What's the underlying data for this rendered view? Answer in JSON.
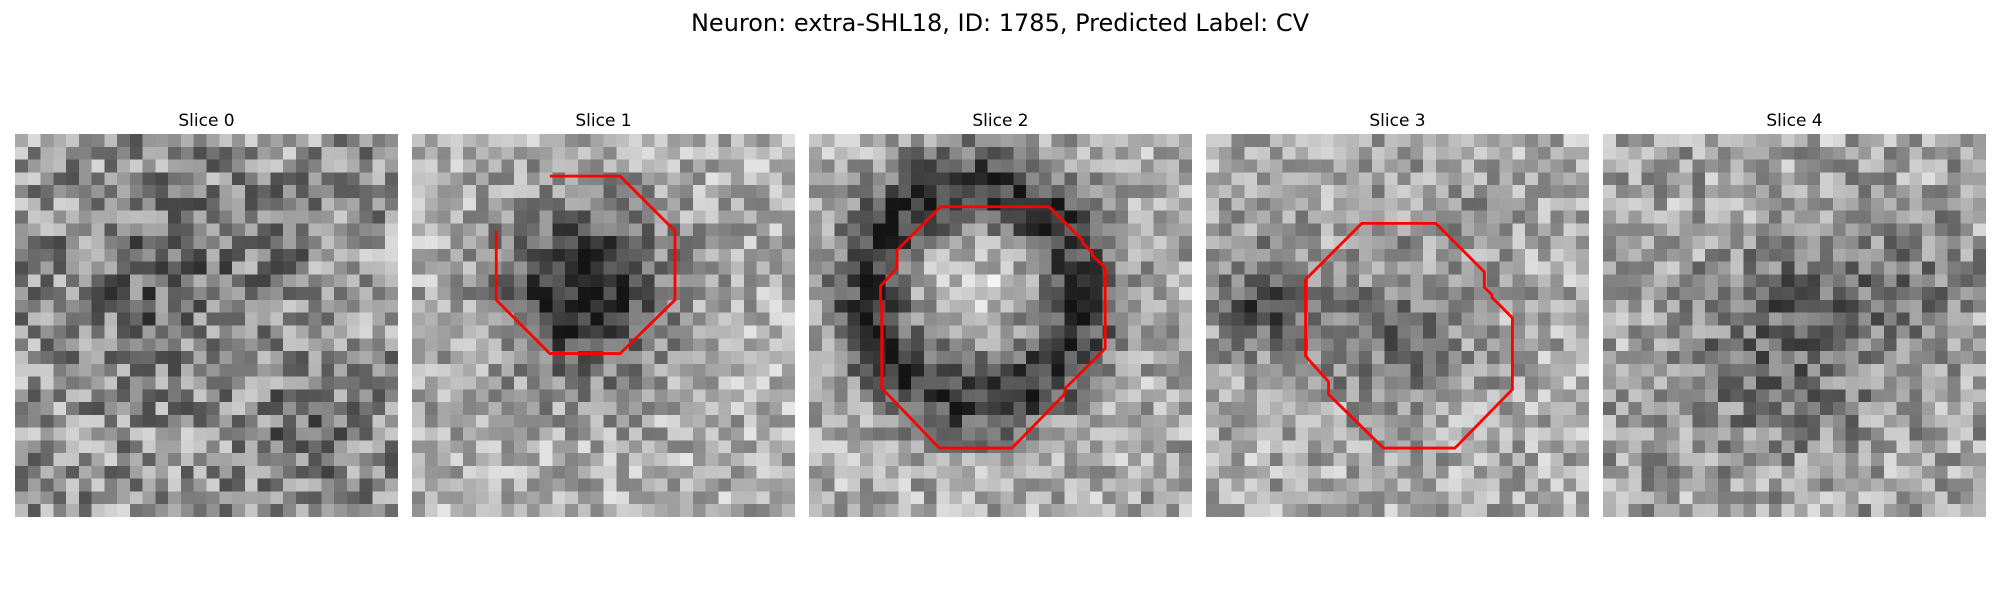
{
  "figure": {
    "title": "Neuron: extra-SHL18, ID: 1785, Predicted Label: CV"
  },
  "panels": [
    {
      "title": "Slice 0",
      "has_contour": false
    },
    {
      "title": "Slice 1",
      "has_contour": true
    },
    {
      "title": "Slice 2",
      "has_contour": true
    },
    {
      "title": "Slice 3",
      "has_contour": true
    },
    {
      "title": "Slice 4",
      "has_contour": false
    }
  ],
  "colors": {
    "contour": "#ff0000",
    "background": "#ffffff"
  }
}
